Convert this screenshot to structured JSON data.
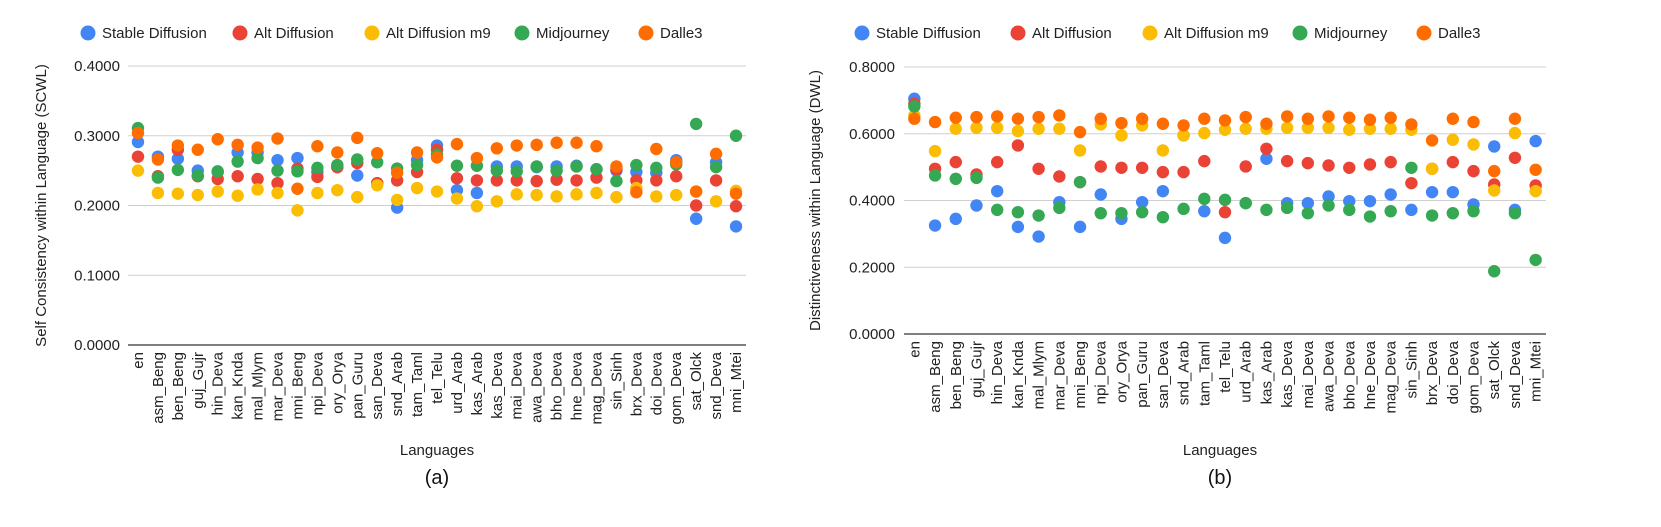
{
  "chart_data": [
    {
      "type": "scatter",
      "caption": "(a)",
      "xlabel": "Languages",
      "ylabel": "Self Consistency within Language (SCWL)",
      "ylim": [
        0,
        0.4
      ],
      "yticks": [
        "0.0000",
        "0.1000",
        "0.2000",
        "0.3000",
        "0.4000"
      ],
      "grid": true,
      "legend_position": "top",
      "categories": [
        "en",
        "asm_Beng",
        "ben_Beng",
        "guj_Gujr",
        "hin_Deva",
        "kan_Knda",
        "mal_Mlym",
        "mar_Deva",
        "mni_Beng",
        "npi_Deva",
        "ory_Orya",
        "pan_Guru",
        "san_Deva",
        "snd_Arab",
        "tam_Taml",
        "tel_Telu",
        "urd_Arab",
        "kas_Arab",
        "kas_Deva",
        "mai_Deva",
        "awa_Deva",
        "bho_Deva",
        "hne_Deva",
        "mag_Deva",
        "sin_Sinh",
        "brx_Deva",
        "doi_Deva",
        "gom_Deva",
        "sat_Olck",
        "snd_Deva",
        "mni_Mtei"
      ],
      "series": [
        {
          "name": "Stable Diffusion",
          "color": "#4285F4",
          "values": [
            0.291,
            0.27,
            0.267,
            0.25,
            0.248,
            0.276,
            0.276,
            0.265,
            0.268,
            0.248,
            0.255,
            0.243,
            0.232,
            0.197,
            0.265,
            0.286,
            0.222,
            0.218,
            0.256,
            0.256,
            0.255,
            0.256,
            0.257,
            0.252,
            0.25,
            0.248,
            0.247,
            0.265,
            0.181,
            0.262,
            0.17
          ]
        },
        {
          "name": "Alt Diffusion",
          "color": "#EA4335",
          "values": [
            0.27,
            0.242,
            0.28,
            0.242,
            0.238,
            0.242,
            0.238,
            0.232,
            0.253,
            0.241,
            0.255,
            0.261,
            0.232,
            0.236,
            0.248,
            0.28,
            0.239,
            0.236,
            0.236,
            0.236,
            0.235,
            0.237,
            0.236,
            0.24,
            0.252,
            0.236,
            0.236,
            0.242,
            0.2,
            0.236,
            0.199
          ]
        },
        {
          "name": "Alt Diffusion m9",
          "color": "#FBBC04",
          "values": [
            0.25,
            0.218,
            0.217,
            0.215,
            0.22,
            0.214,
            0.223,
            0.218,
            0.193,
            0.218,
            0.222,
            0.212,
            0.229,
            0.208,
            0.225,
            0.22,
            0.21,
            0.199,
            0.206,
            0.216,
            0.215,
            0.213,
            0.216,
            0.218,
            0.212,
            0.225,
            0.213,
            0.215,
            0.22,
            0.206,
            0.221
          ]
        },
        {
          "name": "Midjourney",
          "color": "#34A853",
          "values": [
            0.311,
            0.24,
            0.251,
            0.243,
            0.249,
            0.263,
            0.268,
            0.25,
            0.249,
            0.254,
            0.258,
            0.266,
            0.262,
            0.253,
            0.258,
            0.273,
            0.257,
            0.257,
            0.25,
            0.249,
            0.256,
            0.25,
            0.256,
            0.252,
            0.235,
            0.258,
            0.254,
            0.259,
            0.317,
            0.255,
            0.3
          ]
        },
        {
          "name": "Dalle3",
          "color": "#FF6D01",
          "values": [
            0.304,
            0.266,
            0.286,
            0.28,
            0.295,
            0.287,
            0.283,
            0.296,
            0.224,
            0.285,
            0.276,
            0.297,
            0.275,
            0.247,
            0.276,
            0.269,
            0.288,
            0.268,
            0.282,
            0.286,
            0.287,
            0.29,
            0.29,
            0.285,
            0.256,
            0.219,
            0.281,
            0.262,
            0.22,
            0.274,
            0.217
          ]
        }
      ]
    },
    {
      "type": "scatter",
      "caption": "(b)",
      "xlabel": "Languages",
      "ylabel": "Distinctiveness within Language (DWL)",
      "ylim": [
        0,
        0.8
      ],
      "yticks": [
        "0.0000",
        "0.2000",
        "0.4000",
        "0.6000",
        "0.8000"
      ],
      "grid": true,
      "legend_position": "top",
      "categories": [
        "en",
        "asm_Beng",
        "ben_Beng",
        "guj_Gujr",
        "hin_Deva",
        "kan_Knda",
        "mal_Mlym",
        "mar_Deva",
        "mni_Beng",
        "npi_Deva",
        "ory_Orya",
        "pan_Guru",
        "san_Deva",
        "snd_Arab",
        "tam_Taml",
        "tel_Telu",
        "urd_Arab",
        "kas_Arab",
        "kas_Deva",
        "mai_Deva",
        "awa_Deva",
        "bho_Deva",
        "hne_Deva",
        "mag_Deva",
        "sin_Sinh",
        "brx_Deva",
        "doi_Deva",
        "gom_Deva",
        "sat_Olck",
        "snd_Deva",
        "mni_Mtei"
      ],
      "series": [
        {
          "name": "Stable Diffusion",
          "color": "#4285F4",
          "values": [
            0.705,
            0.325,
            0.345,
            0.385,
            0.428,
            0.321,
            0.292,
            0.395,
            0.321,
            0.418,
            0.345,
            0.395,
            0.428,
            0.595,
            0.368,
            0.288,
            0.392,
            0.525,
            0.392,
            0.392,
            0.412,
            0.398,
            0.398,
            0.418,
            0.372,
            0.425,
            0.425,
            0.388,
            0.562,
            0.372,
            0.578
          ]
        },
        {
          "name": "Alt Diffusion",
          "color": "#EA4335",
          "values": [
            0.69,
            0.495,
            0.515,
            0.478,
            0.515,
            0.565,
            0.495,
            0.472,
            0.455,
            0.502,
            0.498,
            0.498,
            0.485,
            0.485,
            0.518,
            0.365,
            0.502,
            0.555,
            0.518,
            0.512,
            0.505,
            0.498,
            0.508,
            0.515,
            0.452,
            0.495,
            0.515,
            0.488,
            0.448,
            0.528,
            0.445
          ]
        },
        {
          "name": "Alt Diffusion m9",
          "color": "#FBBC04",
          "values": [
            0.655,
            0.548,
            0.615,
            0.618,
            0.618,
            0.608,
            0.615,
            0.615,
            0.55,
            0.628,
            0.595,
            0.625,
            0.55,
            0.595,
            0.602,
            0.612,
            0.615,
            0.615,
            0.618,
            0.618,
            0.618,
            0.612,
            0.615,
            0.615,
            0.612,
            0.495,
            0.582,
            0.568,
            0.43,
            0.602,
            0.428
          ]
        },
        {
          "name": "Midjourney",
          "color": "#34A853",
          "values": [
            0.682,
            0.475,
            0.465,
            0.468,
            0.372,
            0.365,
            0.355,
            0.378,
            0.455,
            0.362,
            0.362,
            0.365,
            0.35,
            0.375,
            0.405,
            0.402,
            0.392,
            0.372,
            0.378,
            0.362,
            0.385,
            0.372,
            0.352,
            0.368,
            0.498,
            0.355,
            0.362,
            0.368,
            0.188,
            0.362,
            0.222
          ]
        },
        {
          "name": "Dalle3",
          "color": "#FF6D01",
          "values": [
            0.645,
            0.635,
            0.648,
            0.65,
            0.652,
            0.645,
            0.65,
            0.655,
            0.605,
            0.645,
            0.632,
            0.645,
            0.63,
            0.625,
            0.645,
            0.64,
            0.65,
            0.63,
            0.652,
            0.645,
            0.652,
            0.648,
            0.642,
            0.648,
            0.628,
            0.58,
            0.645,
            0.635,
            0.488,
            0.645,
            0.492
          ]
        }
      ]
    }
  ]
}
